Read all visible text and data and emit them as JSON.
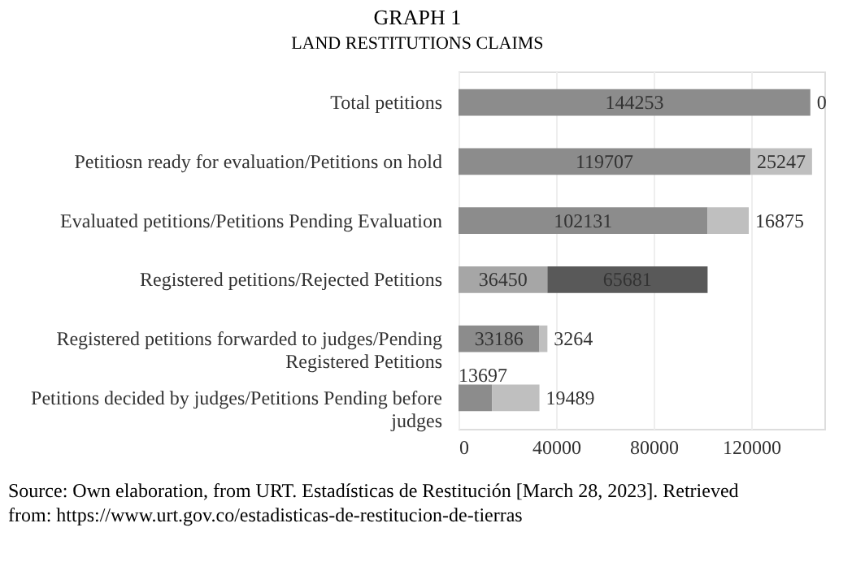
{
  "chart_data": {
    "type": "bar",
    "orientation": "horizontal",
    "stacked": true,
    "data_labels": true,
    "grid": "x",
    "title": "GRAPH 1",
    "subtitle": "LAND RESTITUTIONS CLAIMS",
    "categories": [
      "Total petitions",
      "Petitiosn ready for evaluation/Petitions on hold",
      "Evaluated petitions/Petitions Pending Evaluation",
      "Registered petitions/Rejected Petitions",
      "Registered petitions forwarded to judges/Pending Registered Petitions",
      "Petitions decided by judges/Petitions Pending before judges"
    ],
    "series": [
      {
        "colors": [
          "#8c8c8c",
          "#8c8c8c",
          "#8c8c8c",
          "#a6a6a6",
          "#8c8c8c",
          "#8c8c8c"
        ],
        "values": [
          144253,
          119707,
          102131,
          36450,
          33186,
          13697
        ]
      },
      {
        "colors": [
          "#bfbfbf",
          "#bfbfbf",
          "#bfbfbf",
          "#595959",
          "#bfbfbf",
          "#bfbfbf"
        ],
        "values": [
          0,
          25247,
          16875,
          65681,
          3264,
          19489
        ]
      }
    ],
    "xlim": [
      0,
      150000
    ],
    "xticks": [
      0,
      40000,
      80000,
      120000
    ],
    "annotations": [
      "Source: Own elaboration, from URT. Estadísticas de Restitución [March 28, 2023]. Retrieved from: https://www.urt.gov.co/estadisticas-de-restitucion-de-tierras"
    ]
  }
}
